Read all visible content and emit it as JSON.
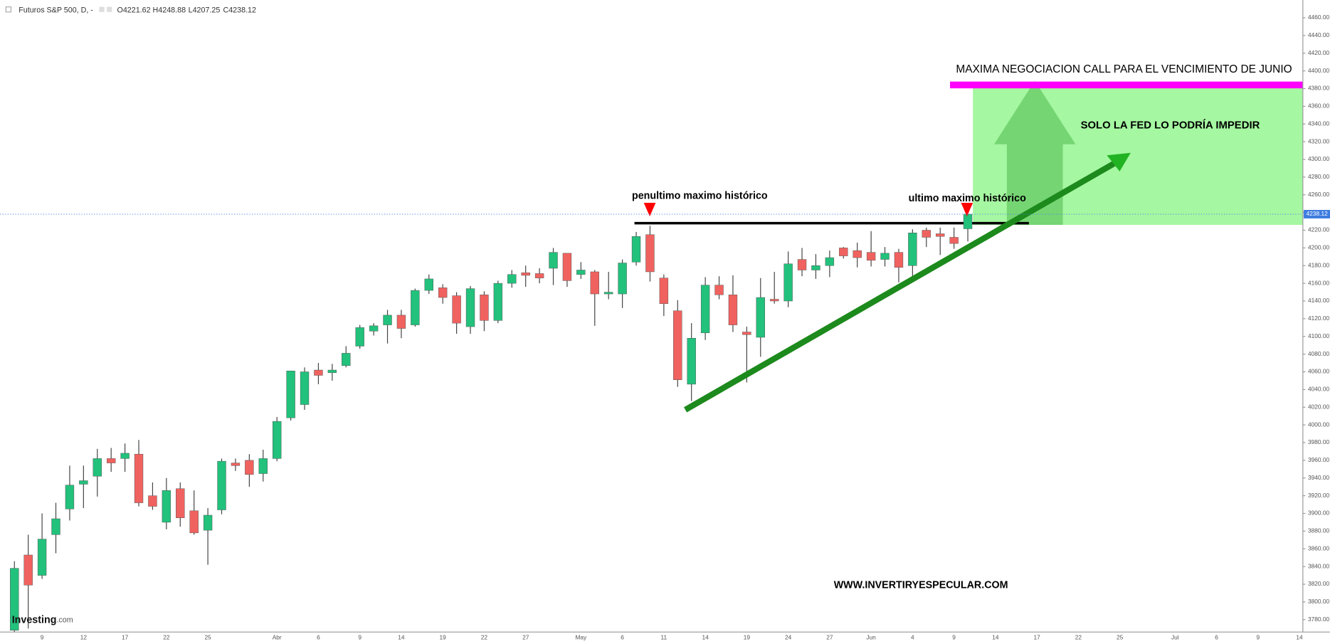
{
  "chart_data": {
    "type": "candlestick",
    "title": "Futuros S&P 500, D, -",
    "legend_values": [
      {
        "value": 4221.62,
        "label": "O4221.62"
      },
      {
        "value": 4248.88,
        "label": "H4248.88"
      },
      {
        "value": 4207.25,
        "label": "L4207.25"
      },
      {
        "value": 4238.12,
        "label": "C4238.12"
      }
    ],
    "last_price": {
      "value": 4238.12,
      "label": "4238.12"
    },
    "up_color": "#22c17c",
    "down_color": "#f0625f",
    "grid": false,
    "ylim": [
      3766,
      4480
    ],
    "yticks": [
      {
        "value": 3780,
        "label": "3780.00"
      },
      {
        "value": 3800,
        "label": "3800.00"
      },
      {
        "value": 3820,
        "label": "3820.00"
      },
      {
        "value": 3840,
        "label": "3840.00"
      },
      {
        "value": 3860,
        "label": "3860.00"
      },
      {
        "value": 3880,
        "label": "3880.00"
      },
      {
        "value": 3900,
        "label": "3900.00"
      },
      {
        "value": 3920,
        "label": "3920.00"
      },
      {
        "value": 3940,
        "label": "3940.00"
      },
      {
        "value": 3960,
        "label": "3960.00"
      },
      {
        "value": 3980,
        "label": "3980.00"
      },
      {
        "value": 4000,
        "label": "4000.00"
      },
      {
        "value": 4020,
        "label": "4020.00"
      },
      {
        "value": 4040,
        "label": "4040.00"
      },
      {
        "value": 4060,
        "label": "4060.00"
      },
      {
        "value": 4080,
        "label": "4080.00"
      },
      {
        "value": 4100,
        "label": "4100.00"
      },
      {
        "value": 4120,
        "label": "4120.00"
      },
      {
        "value": 4140,
        "label": "4140.00"
      },
      {
        "value": 4160,
        "label": "4160.00"
      },
      {
        "value": 4180,
        "label": "4180.00"
      },
      {
        "value": 4200,
        "label": "4200.00"
      },
      {
        "value": 4220,
        "label": "4220.00"
      },
      {
        "value": 4240,
        "label": "4240.00"
      },
      {
        "value": 4260,
        "label": "4260.00"
      },
      {
        "value": 4280,
        "label": "4280.00"
      },
      {
        "value": 4300,
        "label": "4300.00"
      },
      {
        "value": 4320,
        "label": "4320.00"
      },
      {
        "value": 4340,
        "label": "4340.00"
      },
      {
        "value": 4360,
        "label": "4360.00"
      },
      {
        "value": 4380,
        "label": "4380.00"
      },
      {
        "value": 4400,
        "label": "4400.00"
      },
      {
        "value": 4420,
        "label": "4420.00"
      },
      {
        "value": 4440,
        "label": "4440.00"
      },
      {
        "value": 4460,
        "label": "4460.00"
      }
    ],
    "categories": [
      null,
      null,
      "9",
      null,
      null,
      "12",
      null,
      null,
      "17",
      null,
      null,
      "22",
      null,
      null,
      "25",
      null,
      null,
      null,
      null,
      "Abr",
      null,
      null,
      "6",
      null,
      null,
      "9",
      null,
      null,
      "14",
      null,
      null,
      "19",
      null,
      null,
      "22",
      null,
      null,
      "27",
      null,
      null,
      null,
      "May",
      null,
      null,
      "6",
      null,
      null,
      "11",
      null,
      null,
      "14",
      null,
      null,
      "19",
      null,
      null,
      "24",
      null,
      null,
      "27",
      null,
      null,
      "Jun",
      null,
      null,
      "4",
      null,
      null,
      "9",
      null,
      null,
      "14",
      null,
      null,
      "17",
      null,
      null,
      "22",
      null,
      null,
      "25",
      null,
      null,
      null,
      "Jul",
      null,
      null,
      "6",
      null,
      null,
      "9",
      null,
      null,
      "14"
    ],
    "open": [
      3768,
      3853,
      3830,
      3876,
      3905,
      3933,
      3942,
      3962,
      3962,
      3967,
      3920,
      3890,
      3928,
      3903,
      3881,
      3904,
      3957,
      3960,
      3945,
      3962,
      4008,
      4023,
      4062,
      4059,
      4067,
      4089,
      4106,
      4113,
      4124,
      4113,
      4152,
      4155,
      4146,
      4111,
      4147,
      4118,
      4160,
      4172,
      4171,
      4177,
      4194,
      4170,
      4173,
      4148,
      4148,
      4184,
      4215,
      4166,
      4129,
      4046,
      4104,
      4158,
      4147,
      4105,
      4099,
      4142,
      4140,
      4187,
      4175,
      4180,
      4200,
      4197,
      4195,
      4187,
      4195,
      4180,
      4220,
      4216,
      4212,
      4221.62,
      null,
      null,
      null,
      null,
      null,
      null,
      null,
      null,
      null,
      null,
      null,
      null,
      null,
      null,
      null,
      null,
      null,
      null,
      null,
      null,
      null,
      null,
      null,
      null
    ],
    "high": [
      3846,
      3876,
      3900,
      3912,
      3954,
      3954,
      3973,
      3974,
      3979,
      3983,
      3935,
      3940,
      3935,
      3926,
      3906,
      3962,
      3962,
      3967,
      3972,
      4009,
      4061,
      4065,
      4070,
      4069,
      4089,
      4113,
      4115,
      4130,
      4130,
      4154,
      4170,
      4159,
      4150,
      4157,
      4151,
      4163,
      4175,
      4180,
      4177,
      4200,
      4194,
      4184,
      4175,
      4173,
      4187,
      4218,
      4225,
      4170,
      4141,
      4115,
      4167,
      4168,
      4169,
      4111,
      4166,
      4173,
      4196,
      4200,
      4193,
      4197,
      4201,
      4206,
      4219,
      4201,
      4199,
      4221,
      4223,
      4223,
      4223,
      4248.88,
      null,
      null,
      null,
      null,
      null,
      null,
      null,
      null,
      null,
      null,
      null,
      null,
      null,
      null,
      null,
      null,
      null,
      null,
      null,
      null,
      null,
      null,
      null,
      null
    ],
    "low": [
      3766,
      3770,
      3826,
      3855,
      3892,
      3906,
      3919,
      3947,
      3947,
      3908,
      3904,
      3882,
      3885,
      3876,
      3842,
      3899,
      3948,
      3930,
      3936,
      3959,
      4005,
      4017,
      4046,
      4050,
      4065,
      4086,
      4101,
      4092,
      4098,
      4111,
      4148,
      4137,
      4103,
      4103,
      4106,
      4115,
      4155,
      4156,
      4160,
      4158,
      4156,
      4165,
      4112,
      4142,
      4132,
      4180,
      4162,
      4123,
      4043,
      4027,
      4096,
      4142,
      4105,
      4048,
      4077,
      4137,
      4133,
      4168,
      4165,
      4167,
      4188,
      4178,
      4179,
      4179,
      4161,
      4168,
      4201,
      4192,
      4199,
      4207.25,
      null,
      null,
      null,
      null,
      null,
      null,
      null,
      null,
      null,
      null,
      null,
      null,
      null,
      null,
      null,
      null,
      null,
      null,
      null,
      null,
      null,
      null,
      null,
      null
    ],
    "close": [
      3838,
      3819,
      3871,
      3894,
      3932,
      3937,
      3962,
      3957,
      3968,
      3912,
      3908,
      3926,
      3895,
      3878,
      3898,
      3959,
      3954,
      3944,
      3962,
      4004,
      4061,
      4060,
      4056,
      4062,
      4081,
      4110,
      4112,
      4124,
      4109,
      4152,
      4165,
      4144,
      4115,
      4154,
      4118,
      4160,
      4170,
      4169,
      4166,
      4195,
      4163,
      4175,
      4148,
      4150,
      4183,
      4213,
      4173,
      4137,
      4051,
      4098,
      4158,
      4147,
      4113,
      4102,
      4144,
      4140,
      4182,
      4175,
      4180,
      4189,
      4191,
      4189,
      4186,
      4194,
      4178,
      4217,
      4212,
      4213,
      4205,
      4238.12,
      null,
      null,
      null,
      null,
      null,
      null,
      null,
      null,
      null,
      null,
      null,
      null,
      null,
      null,
      null,
      null,
      null,
      null,
      null,
      null,
      null,
      null,
      null,
      null
    ],
    "annotations": [
      "MAXIMA NEGOCIACION CALL PARA EL VENCIMIENTO DE JUNIO",
      "SOLO LA FED LO PODRÍA IMPEDIR",
      "penultimo maximo histórico",
      "ultimo maximo histórico",
      "WWW.INVERTIRYESPECULAR.COM"
    ],
    "logo": [
      "Investing",
      ".com"
    ]
  }
}
